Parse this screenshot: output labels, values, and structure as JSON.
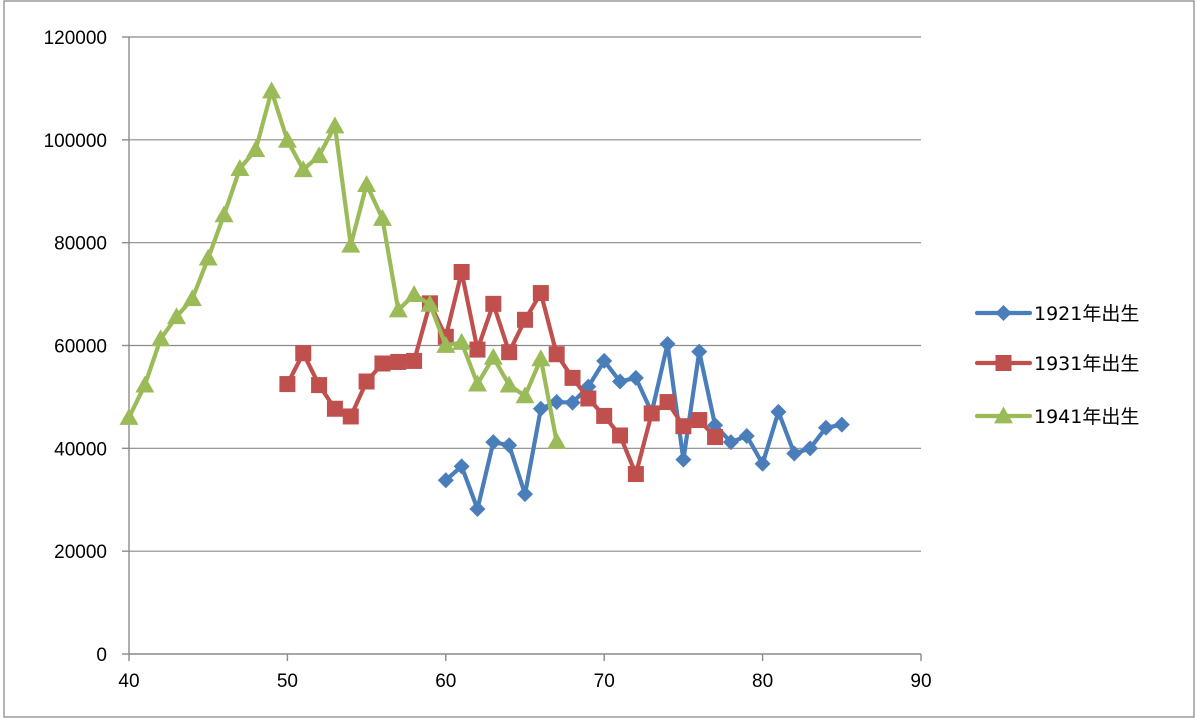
{
  "chart_data": {
    "type": "line",
    "title": "",
    "xlabel": "",
    "ylabel": "",
    "xlim": [
      40,
      90
    ],
    "ylim": [
      0,
      120000
    ],
    "x_ticks": [
      "40",
      "50",
      "60",
      "70",
      "80",
      "90"
    ],
    "y_ticks": [
      "0",
      "20000",
      "40000",
      "60000",
      "80000",
      "100000",
      "120000"
    ],
    "grid": "horizontal",
    "legend_position": "right",
    "series": [
      {
        "name": "1921年出生",
        "color": "#4a7ebb",
        "marker": "diamond",
        "points": [
          [
            60,
            33800
          ],
          [
            61,
            36500
          ],
          [
            62,
            28200
          ],
          [
            63,
            41200
          ],
          [
            64,
            40600
          ],
          [
            65,
            31100
          ],
          [
            66,
            47700
          ],
          [
            67,
            49000
          ],
          [
            68,
            48900
          ],
          [
            69,
            52000
          ],
          [
            70,
            57000
          ],
          [
            71,
            53000
          ],
          [
            72,
            53700
          ],
          [
            73,
            47000
          ],
          [
            74,
            60300
          ],
          [
            75,
            37800
          ],
          [
            76,
            58800
          ],
          [
            77,
            44500
          ],
          [
            78,
            41200
          ],
          [
            79,
            42400
          ],
          [
            80,
            37000
          ],
          [
            81,
            47100
          ],
          [
            82,
            39000
          ],
          [
            83,
            40000
          ],
          [
            84,
            44000
          ],
          [
            85,
            44600
          ]
        ]
      },
      {
        "name": "1931年出生",
        "color": "#c0504d",
        "marker": "square",
        "points": [
          [
            50,
            52500
          ],
          [
            51,
            58500
          ],
          [
            52,
            52300
          ],
          [
            53,
            47700
          ],
          [
            54,
            46200
          ],
          [
            55,
            53000
          ],
          [
            56,
            56500
          ],
          [
            57,
            56800
          ],
          [
            58,
            57000
          ],
          [
            59,
            68200
          ],
          [
            60,
            61700
          ],
          [
            61,
            74300
          ],
          [
            62,
            59200
          ],
          [
            63,
            68100
          ],
          [
            64,
            58700
          ],
          [
            65,
            65000
          ],
          [
            66,
            70200
          ],
          [
            67,
            58300
          ],
          [
            68,
            53700
          ],
          [
            69,
            49700
          ],
          [
            70,
            46300
          ],
          [
            71,
            42500
          ],
          [
            72,
            35000
          ],
          [
            73,
            46800
          ],
          [
            74,
            49000
          ],
          [
            75,
            44300
          ],
          [
            76,
            45500
          ],
          [
            77,
            42200
          ]
        ]
      },
      {
        "name": "1941年出生",
        "color": "#9bbb59",
        "marker": "triangle",
        "points": [
          [
            40,
            46000
          ],
          [
            41,
            52300
          ],
          [
            42,
            61300
          ],
          [
            43,
            65600
          ],
          [
            44,
            69100
          ],
          [
            45,
            77000
          ],
          [
            46,
            85400
          ],
          [
            47,
            94400
          ],
          [
            48,
            98100
          ],
          [
            49,
            109500
          ],
          [
            50,
            99900
          ],
          [
            51,
            94200
          ],
          [
            52,
            96900
          ],
          [
            53,
            102700
          ],
          [
            54,
            79500
          ],
          [
            55,
            91300
          ],
          [
            56,
            84700
          ],
          [
            57,
            66900
          ],
          [
            58,
            69900
          ],
          [
            59,
            68000
          ],
          [
            60,
            60000
          ],
          [
            61,
            60600
          ],
          [
            62,
            52500
          ],
          [
            63,
            57700
          ],
          [
            64,
            52300
          ],
          [
            65,
            50200
          ],
          [
            66,
            57400
          ],
          [
            67,
            41300
          ]
        ]
      }
    ]
  }
}
